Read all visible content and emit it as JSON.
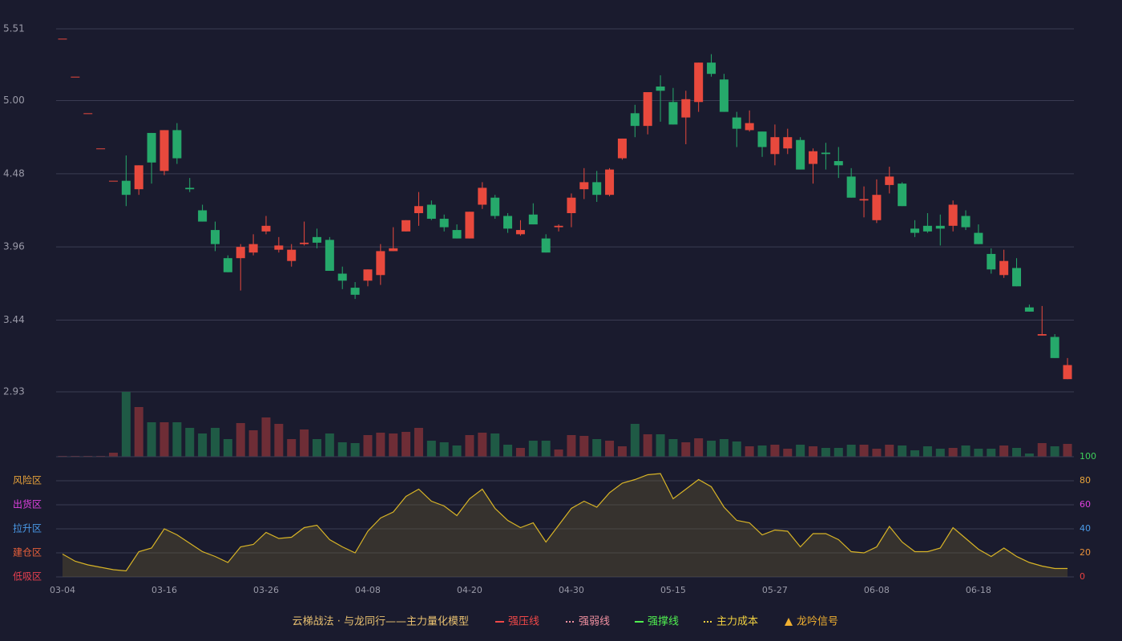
{
  "chart_data": [
    {
      "type": "candlestick",
      "categories": [
        "03-04",
        null,
        null,
        null,
        null,
        null,
        null,
        null,
        "03-16",
        null,
        null,
        null,
        null,
        null,
        null,
        null,
        "03-26",
        null,
        null,
        null,
        null,
        null,
        null,
        null,
        "04-08",
        null,
        null,
        null,
        null,
        null,
        null,
        null,
        "04-20",
        null,
        null,
        null,
        null,
        null,
        null,
        null,
        "04-30",
        null,
        null,
        null,
        null,
        null,
        null,
        null,
        "05-15",
        null,
        null,
        null,
        null,
        null,
        null,
        null,
        "05-27",
        null,
        null,
        null,
        null,
        null,
        null,
        null,
        "06-08",
        null,
        null,
        null,
        null,
        null,
        null,
        null,
        "06-18",
        null,
        null,
        null,
        null,
        null,
        null,
        null
      ],
      "open": [
        5.44,
        5.17,
        4.91,
        4.66,
        4.43,
        4.43,
        4.37,
        4.77,
        4.5,
        4.79,
        4.38,
        4.22,
        4.08,
        3.88,
        3.88,
        3.92,
        4.07,
        3.94,
        3.86,
        3.98,
        4.03,
        4.01,
        3.77,
        3.67,
        3.72,
        3.76,
        3.93,
        4.07,
        4.2,
        4.26,
        4.16,
        4.08,
        4.02,
        4.26,
        4.31,
        4.18,
        4.05,
        4.19,
        4.02,
        4.1,
        4.2,
        4.37,
        4.42,
        4.33,
        4.59,
        4.91,
        4.82,
        5.1,
        4.99,
        4.88,
        4.99,
        5.27,
        5.15,
        4.88,
        4.79,
        4.78,
        4.62,
        4.66,
        4.72,
        4.55,
        4.63,
        4.57,
        4.46,
        4.29,
        4.15,
        4.4,
        4.41,
        4.09,
        4.11,
        4.11,
        4.11,
        4.18,
        4.06,
        3.91,
        3.76,
        3.81,
        3.53,
        3.33,
        3.32,
        3.02
      ],
      "high": [
        5.44,
        5.17,
        4.91,
        4.66,
        4.43,
        4.61,
        4.54,
        4.77,
        4.79,
        4.84,
        4.45,
        4.26,
        4.14,
        3.9,
        3.98,
        4.05,
        4.18,
        4.03,
        3.98,
        4.14,
        4.09,
        4.03,
        3.82,
        3.71,
        3.8,
        3.98,
        4.1,
        4.15,
        4.35,
        4.29,
        4.19,
        4.12,
        4.21,
        4.42,
        4.33,
        4.2,
        4.15,
        4.27,
        4.05,
        4.12,
        4.34,
        4.52,
        4.5,
        4.52,
        4.73,
        4.97,
        5.06,
        5.18,
        5.09,
        5.07,
        5.27,
        5.33,
        5.19,
        4.92,
        4.93,
        4.78,
        4.83,
        4.8,
        4.74,
        4.66,
        4.7,
        4.67,
        4.52,
        4.39,
        4.44,
        4.53,
        4.42,
        4.15,
        4.2,
        4.19,
        4.29,
        4.22,
        4.12,
        3.95,
        3.94,
        3.88,
        3.55,
        3.54,
        3.34,
        3.17
      ],
      "low": [
        5.44,
        5.17,
        4.91,
        4.66,
        4.43,
        4.25,
        4.33,
        4.41,
        4.47,
        4.55,
        4.35,
        4.14,
        3.93,
        3.78,
        3.65,
        3.9,
        4.05,
        3.92,
        3.82,
        3.97,
        3.95,
        3.79,
        3.66,
        3.59,
        3.68,
        3.69,
        3.93,
        4.07,
        4.11,
        4.15,
        4.07,
        4.02,
        4.02,
        4.23,
        4.16,
        4.06,
        4.04,
        4.12,
        3.92,
        4.07,
        4.1,
        4.3,
        4.28,
        4.32,
        4.58,
        4.74,
        4.76,
        4.85,
        4.83,
        4.69,
        4.92,
        5.17,
        4.92,
        4.67,
        4.78,
        4.6,
        4.54,
        4.62,
        4.51,
        4.41,
        4.51,
        4.45,
        4.31,
        4.17,
        4.13,
        4.34,
        4.25,
        4.03,
        4.06,
        3.97,
        4.07,
        4.08,
        3.98,
        3.77,
        3.74,
        3.68,
        3.5,
        3.33,
        3.17,
        3.02
      ],
      "close": [
        5.44,
        5.17,
        4.91,
        4.66,
        4.43,
        4.33,
        4.54,
        4.56,
        4.79,
        4.59,
        4.37,
        4.14,
        3.98,
        3.78,
        3.96,
        3.98,
        4.11,
        3.97,
        3.94,
        3.99,
        3.99,
        3.79,
        3.72,
        3.62,
        3.8,
        3.93,
        3.95,
        4.15,
        4.25,
        4.16,
        4.1,
        4.02,
        4.21,
        4.38,
        4.18,
        4.09,
        4.08,
        4.12,
        3.92,
        4.11,
        4.31,
        4.42,
        4.33,
        4.51,
        4.73,
        4.82,
        5.06,
        5.07,
        4.83,
        5.01,
        5.27,
        5.19,
        4.92,
        4.8,
        4.84,
        4.67,
        4.74,
        4.74,
        4.51,
        4.64,
        4.62,
        4.54,
        4.31,
        4.3,
        4.33,
        4.46,
        4.25,
        4.06,
        4.07,
        4.09,
        4.26,
        4.1,
        3.98,
        3.8,
        3.86,
        3.68,
        3.5,
        3.34,
        3.17,
        3.12
      ],
      "ylim": [
        2.93,
        5.51
      ],
      "yticks": [
        5.51,
        {
          "value": 5,
          "label": "5.00"
        },
        4.48,
        3.96,
        3.44,
        2.93
      ],
      "grid": true,
      "up_color": "#e8493d",
      "down_color": "#26a96b"
    },
    {
      "type": "bar",
      "values": [
        1,
        1,
        1,
        1,
        5,
        81,
        62,
        43,
        43,
        43,
        36,
        29,
        36,
        22,
        42,
        33,
        49,
        41,
        22,
        34,
        22,
        29,
        18,
        17,
        27,
        30,
        29,
        31,
        36,
        20,
        18,
        14,
        27,
        30,
        29,
        15,
        11,
        20,
        20,
        9,
        27,
        26,
        22,
        20,
        13,
        41,
        28,
        28,
        22,
        18,
        23,
        20,
        22,
        19,
        13,
        14,
        15,
        10,
        15,
        13,
        11,
        11,
        15,
        15,
        10,
        15,
        14,
        8,
        13,
        10,
        11,
        14,
        10,
        10,
        14,
        11,
        4,
        17,
        13,
        16
      ],
      "up_color": "#6e2d36",
      "down_color": "#1f5a45"
    },
    {
      "type": "area",
      "values": [
        19,
        13,
        10,
        8,
        6,
        5,
        21,
        24,
        40,
        35,
        28,
        21,
        17,
        12,
        25,
        27,
        37,
        32,
        33,
        41,
        43,
        31,
        25,
        20,
        38,
        49,
        54,
        67,
        73,
        63,
        59,
        51,
        65,
        73,
        57,
        47,
        41,
        45,
        29,
        43,
        57,
        63,
        58,
        70,
        78,
        81,
        85,
        86,
        65,
        73,
        81,
        75,
        58,
        47,
        45,
        35,
        39,
        38,
        25,
        36,
        36,
        31,
        21,
        20,
        25,
        42,
        29,
        21,
        21,
        24,
        41,
        32,
        23,
        17,
        24,
        17,
        12,
        9,
        7,
        7
      ],
      "ylim": [
        0,
        100
      ],
      "yticks": [
        0,
        20,
        40,
        60,
        80,
        100
      ],
      "ytick_colors": [
        "#e84040",
        "#e8903a",
        "#4a9ae8",
        "#e040e0",
        "#e8a33a",
        "#3ecf5a"
      ],
      "color": "#d8b426",
      "grid": true,
      "zones": [
        {
          "label": "风险区",
          "value": 80,
          "color": "#e8a33a"
        },
        {
          "label": "出货区",
          "value": 60,
          "color": "#e040e0"
        },
        {
          "label": "拉升区",
          "value": 40,
          "color": "#4a9ae8"
        },
        {
          "label": "建仓区",
          "value": 20,
          "color": "#e8603a"
        },
        {
          "label": "低吸区",
          "value": 0,
          "color": "#e84050"
        }
      ]
    }
  ],
  "legend": {
    "title": "云梯战法 · 与龙同行——主力量化模型",
    "items": [
      {
        "name": "强压线",
        "color": "#f04848",
        "style": "solid"
      },
      {
        "name": "强弱线",
        "color": "#f090a0",
        "style": "dashed"
      },
      {
        "name": "强撑线",
        "color": "#50f050",
        "style": "solid"
      },
      {
        "name": "主力成本",
        "color": "#f0d040",
        "style": "dashed"
      },
      {
        "name": "龙吟信号",
        "color": "#f0b030",
        "style": "triangle"
      }
    ]
  }
}
